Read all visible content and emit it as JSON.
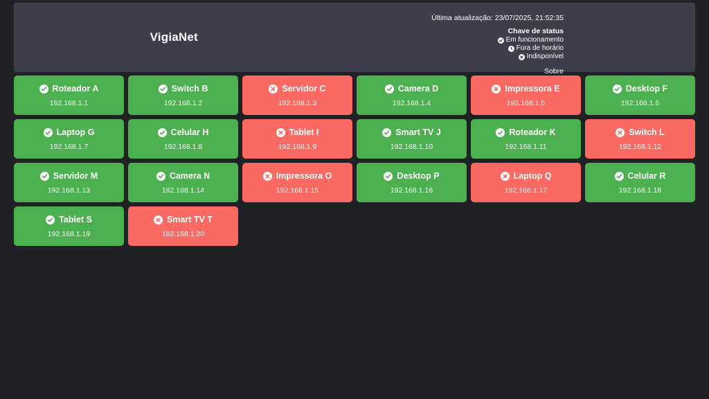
{
  "header": {
    "title": "VigiaNet",
    "last_update": "Última atualização: 23/07/2025, 21:52:35",
    "legend": {
      "title": "Chave de status",
      "items": [
        {
          "icon": "check-circle-icon",
          "label": "Em funcionamento"
        },
        {
          "icon": "clock-icon",
          "label": "Fora de horário"
        },
        {
          "icon": "x-circle-icon",
          "label": "Indisponível"
        }
      ]
    },
    "about_label": "Sobre"
  },
  "colors": {
    "online": "#4caf50",
    "offline": "#fb6a62",
    "header_bg": "#3e3e4a",
    "page_bg": "#1f2125",
    "text": "#ffffff"
  },
  "devices": [
    {
      "name": "Roteador A",
      "ip": "192.168.1.1",
      "status": "online",
      "status_icon": "check-circle-icon"
    },
    {
      "name": "Switch B",
      "ip": "192.168.1.2",
      "status": "online",
      "status_icon": "check-circle-icon"
    },
    {
      "name": "Servidor C",
      "ip": "192.168.1.3",
      "status": "offline",
      "status_icon": "x-circle-icon"
    },
    {
      "name": "Camera D",
      "ip": "192.168.1.4",
      "status": "online",
      "status_icon": "check-circle-icon"
    },
    {
      "name": "Impressora E",
      "ip": "192.168.1.5",
      "status": "offline",
      "status_icon": "x-circle-icon"
    },
    {
      "name": "Desktop F",
      "ip": "192.168.1.6",
      "status": "online",
      "status_icon": "check-circle-icon"
    },
    {
      "name": "Laptop G",
      "ip": "192.168.1.7",
      "status": "online",
      "status_icon": "check-circle-icon"
    },
    {
      "name": "Celular H",
      "ip": "192.168.1.8",
      "status": "online",
      "status_icon": "check-circle-icon"
    },
    {
      "name": "Tablet I",
      "ip": "192.168.1.9",
      "status": "offline",
      "status_icon": "x-circle-icon"
    },
    {
      "name": "Smart TV J",
      "ip": "192.168.1.10",
      "status": "online",
      "status_icon": "check-circle-icon"
    },
    {
      "name": "Roteador K",
      "ip": "192.168.1.11",
      "status": "online",
      "status_icon": "check-circle-icon"
    },
    {
      "name": "Switch L",
      "ip": "192.168.1.12",
      "status": "offline",
      "status_icon": "x-circle-icon"
    },
    {
      "name": "Servidor M",
      "ip": "192.168.1.13",
      "status": "online",
      "status_icon": "check-circle-icon"
    },
    {
      "name": "Camera N",
      "ip": "192.168.1.14",
      "status": "online",
      "status_icon": "check-circle-icon"
    },
    {
      "name": "Impressora O",
      "ip": "192.168.1.15",
      "status": "offline",
      "status_icon": "x-circle-icon"
    },
    {
      "name": "Desktop P",
      "ip": "192.168.1.16",
      "status": "online",
      "status_icon": "check-circle-icon"
    },
    {
      "name": "Laptop Q",
      "ip": "192.168.1.17",
      "status": "offline",
      "status_icon": "x-circle-icon"
    },
    {
      "name": "Celular R",
      "ip": "192.168.1.18",
      "status": "online",
      "status_icon": "check-circle-icon"
    },
    {
      "name": "Tablet S",
      "ip": "192.168.1.19",
      "status": "online",
      "status_icon": "check-circle-icon"
    },
    {
      "name": "Smart TV T",
      "ip": "192.168.1.20",
      "status": "offline",
      "status_icon": "x-circle-icon"
    }
  ]
}
